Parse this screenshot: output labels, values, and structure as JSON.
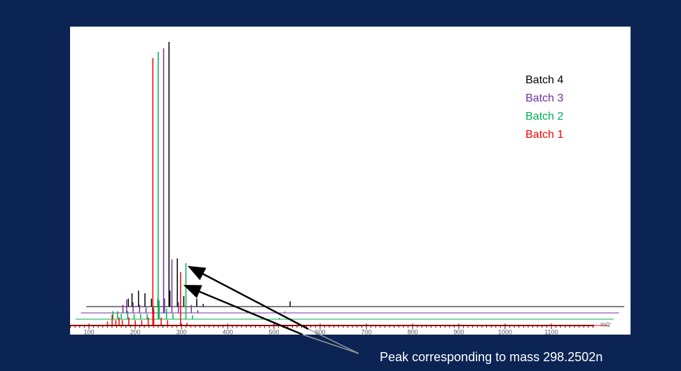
{
  "chart_data": {
    "type": "spectrum",
    "xlabel": "m/z",
    "xlim": [
      59,
      1185
    ],
    "xticks": [
      100,
      200,
      300,
      400,
      500,
      600,
      700,
      800,
      900,
      1000,
      1100
    ],
    "ylim": [
      0,
      100
    ],
    "series": [
      {
        "name": "Batch 1",
        "color": "#ff0000",
        "x": [
          140,
          150,
          158,
          165,
          172,
          186,
          200,
          214,
          228,
          238,
          240,
          256,
          270,
          298,
          312,
          500
        ],
        "values": [
          1.5,
          4,
          2,
          3,
          2,
          3,
          2,
          2,
          3,
          100,
          6,
          3,
          2,
          20,
          1,
          0.5
        ]
      },
      {
        "name": "Batch 2",
        "color": "#00b050",
        "x": [
          140,
          150,
          158,
          172,
          186,
          200,
          214,
          228,
          238,
          240,
          256,
          270,
          298,
          312,
          500
        ],
        "values": [
          3,
          3,
          2,
          3,
          2,
          2,
          2,
          5,
          100,
          7,
          4,
          2,
          21,
          1.5,
          0.5
        ]
      },
      {
        "name": "Batch 3",
        "color": "#7030a0",
        "x": [
          150,
          158,
          172,
          186,
          200,
          214,
          228,
          238,
          240,
          256,
          270,
          298,
          312,
          500
        ],
        "values": [
          3,
          5,
          4,
          3,
          2,
          2,
          2,
          99,
          5,
          20,
          4,
          3,
          1,
          0.5
        ]
      },
      {
        "name": "Batch 4",
        "color": "#000000",
        "x": [
          150,
          158,
          172,
          186,
          200,
          214,
          228,
          238,
          240,
          256,
          270,
          298,
          312,
          500
        ],
        "values": [
          3,
          5,
          6,
          5,
          3,
          3,
          3,
          99,
          6,
          18,
          4,
          3,
          1,
          2
        ]
      }
    ],
    "annotation": "Peak corresponding to mass 298.2502n"
  }
}
